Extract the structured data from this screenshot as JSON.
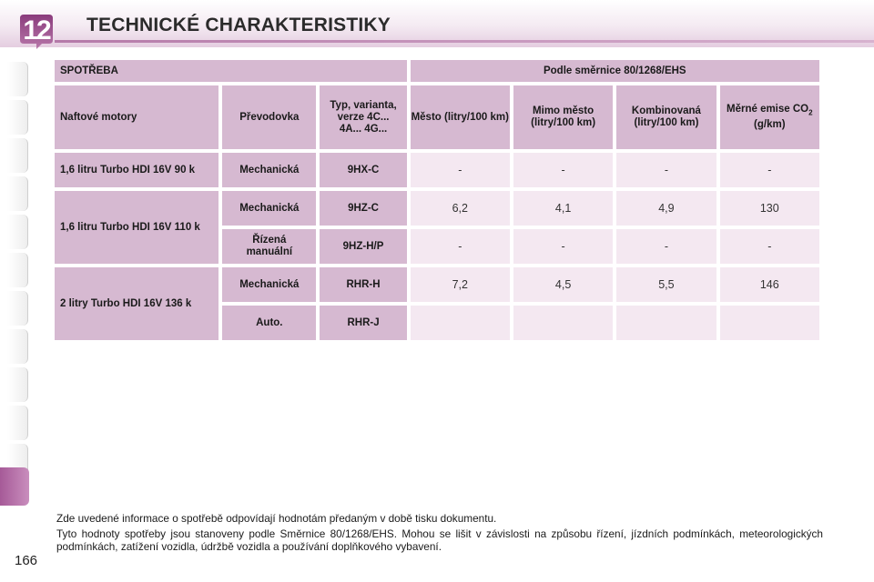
{
  "header": {
    "chapter": "12",
    "title": "TECHNICKÉ CHARAKTERISTIKY"
  },
  "table": {
    "section_left": "SPOTŘEBA",
    "section_right": "Podle směrnice 80/1268/EHS",
    "columns": {
      "engine": "Naftové motory",
      "gearbox": "Převodovka",
      "type": "Typ, varianta, verze 4C... 4A... 4G...",
      "city": "Město (litry/100 km)",
      "extra": "Mimo město (litry/100 km)",
      "combined": "Kombinovaná (litry/100 km)",
      "co2_pre": "Měrné emise CO",
      "co2_sub": "2",
      "co2_post": "(g/km)"
    },
    "rows": [
      {
        "engine": "1,6 litru Turbo HDI 16V 90 k",
        "gearbox": "Mechanická",
        "type": "9HX-C",
        "city": "-",
        "extra": "-",
        "combined": "-",
        "co2": "-"
      },
      {
        "engine": "1,6 litru Turbo HDI 16V 110 k",
        "gearbox": "Mechanická",
        "type": "9HZ-C",
        "city": "6,2",
        "extra": "4,1",
        "combined": "4,9",
        "co2": "130"
      },
      {
        "engine": "",
        "gearbox": "Řízená manuální",
        "type": "9HZ-H/P",
        "city": "-",
        "extra": "-",
        "combined": "-",
        "co2": "-"
      },
      {
        "engine": "2 litry Turbo HDI 16V 136 k",
        "gearbox": "Mechanická",
        "type": "RHR-H",
        "city": "7,2",
        "extra": "4,5",
        "combined": "5,5",
        "co2": "146"
      },
      {
        "engine": "",
        "gearbox": "Auto.",
        "type": "RHR-J",
        "city": "",
        "extra": "",
        "combined": "",
        "co2": ""
      }
    ]
  },
  "notes": {
    "note1": "Zde uvedené informace o spotřebě odpovídají hodnotám předaným v době tisku dokumentu.",
    "note2": "Tyto hodnoty spotřeby jsou stanoveny podle Směrnice 80/1268/EHS. Mohou se lišit v závislosti na způsobu řízení, jízdních podmínkách, meteorologických podmínkách, zatížení vozidla, údržbě vozidla a používání doplňkového vybavení."
  },
  "page_number": "166",
  "colors": {
    "header_cell": "#d6b9d1",
    "value_cell": "#f4e8f1",
    "accent": "#b06aa2"
  }
}
